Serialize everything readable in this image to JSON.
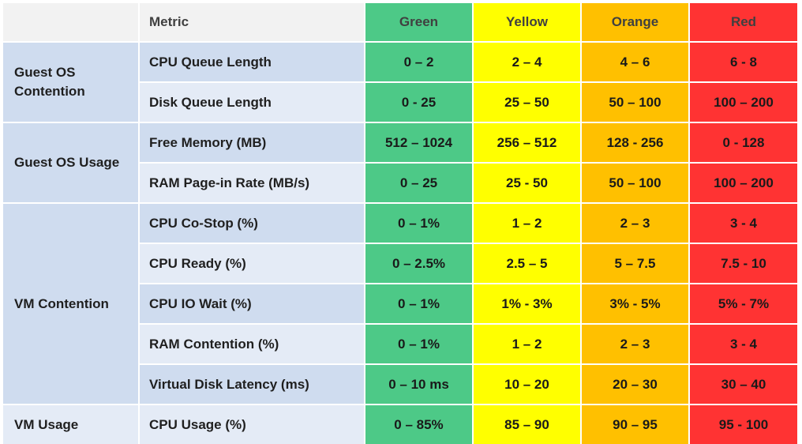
{
  "header": {
    "metric": "Metric",
    "levels": [
      "Green",
      "Yellow",
      "Orange",
      "Red"
    ]
  },
  "colors": {
    "green": "#4dc987",
    "yellow": "#ffff00",
    "orange": "#ffc000",
    "red": "#ff3333"
  },
  "categories": [
    {
      "label": "Guest OS Contention"
    },
    {
      "label": "Guest OS Usage"
    },
    {
      "label": "VM Contention"
    },
    {
      "label": "VM Usage"
    }
  ],
  "rows": [
    {
      "metric": "CPU Queue Length",
      "values": [
        "0 – 2",
        "2 – 4",
        "4 – 6",
        "6 - 8"
      ]
    },
    {
      "metric": "Disk Queue Length",
      "values": [
        "0 - 25",
        "25 – 50",
        "50 – 100",
        "100 – 200"
      ]
    },
    {
      "metric": "Free Memory (MB)",
      "values": [
        "512 – 1024",
        "256 – 512",
        "128 - 256",
        "0 - 128"
      ]
    },
    {
      "metric": "RAM Page-in Rate (MB/s)",
      "values": [
        "0 – 25",
        "25 - 50",
        "50 – 100",
        "100 – 200"
      ]
    },
    {
      "metric": "CPU Co-Stop (%)",
      "values": [
        "0 – 1%",
        "1 – 2",
        "2 – 3",
        "3 - 4"
      ]
    },
    {
      "metric": "CPU Ready (%)",
      "values": [
        "0 – 2.5%",
        "2.5 – 5",
        "5 – 7.5",
        "7.5 - 10"
      ]
    },
    {
      "metric": "CPU IO Wait (%)",
      "values": [
        "0 – 1%",
        "1% - 3%",
        "3% - 5%",
        "5% - 7%"
      ]
    },
    {
      "metric": "RAM Contention (%)",
      "values": [
        "0 – 1%",
        "1 – 2",
        "2 – 3",
        "3 - 4"
      ]
    },
    {
      "metric": "Virtual Disk Latency (ms)",
      "values": [
        "0 – 10 ms",
        "10 – 20",
        "20 – 30",
        "30 – 40"
      ]
    },
    {
      "metric": "CPU Usage (%)",
      "values": [
        "0 – 85%",
        "85 – 90",
        "90 – 95",
        "95 - 100"
      ]
    }
  ]
}
